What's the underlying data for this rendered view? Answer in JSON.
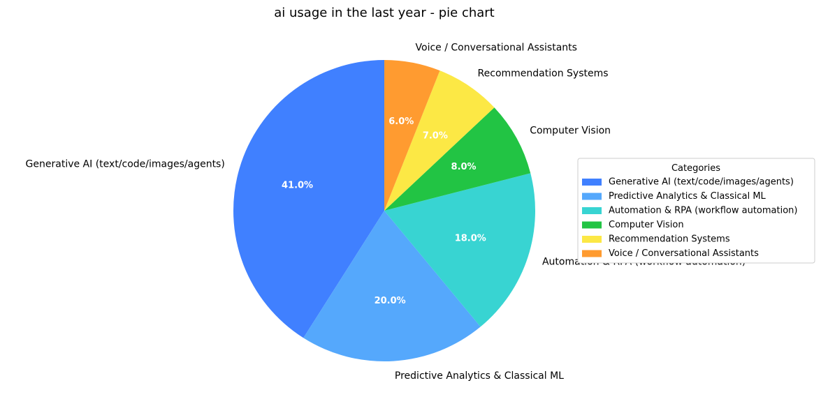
{
  "chart_data": {
    "type": "pie",
    "title": "ai usage in the last year - pie chart",
    "categories": [
      "Generative AI (text/code/images/agents)",
      "Predictive Analytics & Classical ML",
      "Automation & RPA (workflow automation)",
      "Computer Vision",
      "Recommendation Systems",
      "Voice / Conversational Assistants"
    ],
    "values": [
      41.0,
      20.0,
      18.0,
      8.0,
      7.0,
      6.0
    ],
    "value_labels": [
      "41.0%",
      "20.0%",
      "18.0%",
      "8.0%",
      "7.0%",
      "6.0%"
    ],
    "colors": [
      "#4080ff",
      "#55a8fc",
      "#38d4d2",
      "#22c444",
      "#fce845",
      "#ff9b30"
    ],
    "start_angle": "top, counterclockwise",
    "legend": {
      "title": "Categories",
      "placement": "right"
    }
  }
}
